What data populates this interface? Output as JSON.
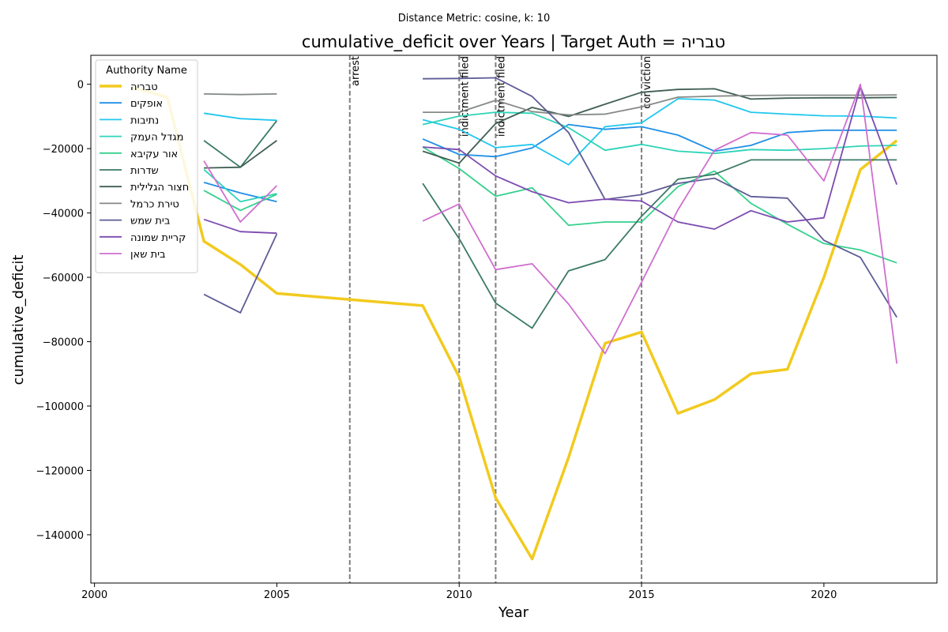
{
  "chart_data": {
    "type": "line",
    "suptitle": "Distance Metric: cosine, k: 10",
    "title": "cumulative_deficit over Years | Target Auth = טבריה",
    "xlabel": "Year",
    "ylabel": "cumulative_deficit",
    "xlim": [
      1999.9,
      2023.1
    ],
    "ylim": [
      -155000,
      9000
    ],
    "xticks": [
      2000,
      2005,
      2010,
      2015,
      2020
    ],
    "yticks": [
      0,
      -20000,
      -40000,
      -60000,
      -80000,
      -100000,
      -120000,
      -140000
    ],
    "ytick_labels": [
      "0",
      "−20000",
      "−40000",
      "−60000",
      "−80000",
      "−100000",
      "−120000",
      "−140000"
    ],
    "grid": false,
    "legend": {
      "title": "Authority Name",
      "placement": "upper-left"
    },
    "events": [
      {
        "x": 2007,
        "label": "arrest"
      },
      {
        "x": 2010,
        "label": "indictment filed"
      },
      {
        "x": 2011,
        "label": "indictment filed"
      },
      {
        "x": 2015,
        "label": "conviction"
      }
    ],
    "series": [
      {
        "name": "טבריה",
        "color": "#f2ca1f",
        "target": true,
        "points": [
          [
            2001,
            -1000
          ],
          [
            2002,
            -4000
          ],
          [
            2003,
            -48800
          ],
          [
            2004,
            -56000
          ],
          [
            2005,
            -65000
          ],
          [
            2009,
            -68800
          ],
          [
            2010,
            -91000
          ],
          [
            2011,
            -128500
          ],
          [
            2012,
            -147500
          ],
          [
            2013,
            -116000
          ],
          [
            2014,
            -80500
          ],
          [
            2015,
            -77000
          ],
          [
            2016,
            -102300
          ],
          [
            2017,
            -98000
          ],
          [
            2018,
            -90000
          ],
          [
            2019,
            -88600
          ],
          [
            2020,
            -60000
          ],
          [
            2021,
            -26500
          ],
          [
            2022,
            -17500
          ]
        ]
      },
      {
        "name": "אופקים",
        "color": "#1f8fe6",
        "points": [
          [
            2003,
            -30500
          ],
          [
            2004,
            -33800
          ],
          [
            2005,
            -36500
          ],
          [
            null,
            null
          ],
          [
            2009,
            -17000
          ],
          [
            2010,
            -21800
          ],
          [
            2011,
            -22500
          ],
          [
            2012,
            -19800
          ],
          [
            2013,
            -12500
          ],
          [
            2014,
            -14000
          ],
          [
            2015,
            -13200
          ],
          [
            2016,
            -15800
          ],
          [
            2017,
            -20800
          ],
          [
            2018,
            -19000
          ],
          [
            2019,
            -15000
          ],
          [
            2020,
            -14300
          ],
          [
            2021,
            -14300
          ],
          [
            2022,
            -14300
          ]
        ]
      },
      {
        "name": "נתיבות",
        "color": "#21c7ef",
        "points": [
          [
            2003,
            -9000
          ],
          [
            2004,
            -10700
          ],
          [
            2005,
            -11200
          ],
          [
            null,
            null
          ],
          [
            2009,
            -11000
          ],
          [
            2010,
            -14000
          ],
          [
            2011,
            -19700
          ],
          [
            2012,
            -18700
          ],
          [
            2013,
            -25000
          ],
          [
            2014,
            -13200
          ],
          [
            2015,
            -12000
          ],
          [
            2016,
            -4500
          ],
          [
            2017,
            -4900
          ],
          [
            2018,
            -8700
          ],
          [
            2019,
            -9300
          ],
          [
            2020,
            -9800
          ],
          [
            2021,
            -9900
          ],
          [
            2022,
            -10500
          ]
        ]
      },
      {
        "name": "מגדל העמק",
        "color": "#2ed4b8",
        "points": [
          [
            2003,
            -26500
          ],
          [
            2004,
            -36500
          ],
          [
            2005,
            -34000
          ],
          [
            null,
            null
          ],
          [
            2009,
            -12500
          ],
          [
            2010,
            -9900
          ],
          [
            2011,
            -8700
          ],
          [
            2012,
            -9000
          ],
          [
            2013,
            -13500
          ],
          [
            2014,
            -20500
          ],
          [
            2015,
            -18700
          ],
          [
            2016,
            -20800
          ],
          [
            2017,
            -21500
          ],
          [
            2018,
            -20300
          ],
          [
            2019,
            -20500
          ],
          [
            2020,
            -20000
          ],
          [
            2021,
            -19200
          ],
          [
            2022,
            -19000
          ]
        ]
      },
      {
        "name": "אור עקיבא",
        "color": "#36d18e",
        "points": [
          [
            2003,
            -33000
          ],
          [
            2004,
            -39200
          ],
          [
            2005,
            -34200
          ],
          [
            null,
            null
          ],
          [
            2009,
            -19500
          ],
          [
            2010,
            -26200
          ],
          [
            2011,
            -34800
          ],
          [
            2012,
            -32200
          ],
          [
            2013,
            -43800
          ],
          [
            2014,
            -42800
          ],
          [
            2015,
            -42800
          ],
          [
            2016,
            -31800
          ],
          [
            2017,
            -27000
          ],
          [
            2018,
            -37000
          ],
          [
            2019,
            -43500
          ],
          [
            2020,
            -49500
          ],
          [
            2021,
            -51500
          ],
          [
            2022,
            -55500
          ]
        ]
      },
      {
        "name": "שדרות",
        "color": "#3b7a67",
        "points": [
          [
            2003,
            -17500
          ],
          [
            2004,
            -25800
          ],
          [
            2005,
            -11300
          ],
          [
            null,
            null
          ],
          [
            2009,
            -30800
          ],
          [
            2010,
            -48000
          ],
          [
            2011,
            -68000
          ],
          [
            2012,
            -75800
          ],
          [
            2013,
            -58000
          ],
          [
            2014,
            -54500
          ],
          [
            2015,
            -41000
          ],
          [
            2016,
            -29500
          ],
          [
            2017,
            -28000
          ],
          [
            2018,
            -23500
          ],
          [
            2019,
            -23500
          ],
          [
            2020,
            -23500
          ],
          [
            2021,
            -23500
          ],
          [
            2022,
            -23500
          ]
        ]
      },
      {
        "name": "חצור הגלילית",
        "color": "#405f52",
        "points": [
          [
            2003,
            -26000
          ],
          [
            2004,
            -25800
          ],
          [
            2005,
            -17500
          ],
          [
            null,
            null
          ],
          [
            2009,
            -20800
          ],
          [
            2010,
            -24500
          ],
          [
            2011,
            -12200
          ],
          [
            2012,
            -7200
          ],
          [
            2013,
            -10000
          ],
          [
            2014,
            -6200
          ],
          [
            2015,
            -2500
          ],
          [
            2016,
            -1600
          ],
          [
            2017,
            -1400
          ],
          [
            2018,
            -4600
          ],
          [
            2019,
            -4300
          ],
          [
            2020,
            -4200
          ],
          [
            2021,
            -4200
          ],
          [
            2022,
            -4100
          ]
        ]
      },
      {
        "name": "טירת כרמל",
        "color": "#858a86",
        "points": [
          [
            2003,
            -3000
          ],
          [
            2004,
            -3200
          ],
          [
            2005,
            -3000
          ],
          [
            null,
            null
          ],
          [
            2009,
            -8700
          ],
          [
            2010,
            -8700
          ],
          [
            2011,
            -5000
          ],
          [
            2012,
            -8500
          ],
          [
            2013,
            -9500
          ],
          [
            2014,
            -9300
          ],
          [
            2015,
            -7000
          ],
          [
            2016,
            -4000
          ],
          [
            2017,
            -3700
          ],
          [
            2018,
            -3500
          ],
          [
            2019,
            -3400
          ],
          [
            2020,
            -3400
          ],
          [
            2021,
            -3400
          ],
          [
            2022,
            -3300
          ]
        ]
      },
      {
        "name": "בית שמש",
        "color": "#5e5c96",
        "points": [
          [
            2003,
            -65300
          ],
          [
            2004,
            -71000
          ],
          [
            2005,
            -46500
          ],
          [
            null,
            null
          ],
          [
            2009,
            1700
          ],
          [
            2010,
            1800
          ],
          [
            2011,
            2000
          ],
          [
            2012,
            -3800
          ],
          [
            2013,
            -15000
          ],
          [
            2014,
            -35800
          ],
          [
            2015,
            -34300
          ],
          [
            2016,
            -30800
          ],
          [
            2017,
            -29200
          ],
          [
            2018,
            -34900
          ],
          [
            2019,
            -35400
          ],
          [
            2020,
            -48500
          ],
          [
            2021,
            -53800
          ],
          [
            2022,
            -72400
          ]
        ]
      },
      {
        "name": "קריית שמונה",
        "color": "#7b4bb0",
        "points": [
          [
            2003,
            -42000
          ],
          [
            2004,
            -45800
          ],
          [
            2005,
            -46300
          ],
          [
            null,
            null
          ],
          [
            2009,
            -19500
          ],
          [
            2010,
            -20300
          ],
          [
            2011,
            -28500
          ],
          [
            2012,
            -33400
          ],
          [
            2013,
            -36800
          ],
          [
            2014,
            -35700
          ],
          [
            2015,
            -36300
          ],
          [
            2016,
            -42800
          ],
          [
            2017,
            -45000
          ],
          [
            2018,
            -39300
          ],
          [
            2019,
            -42800
          ],
          [
            2020,
            -41500
          ],
          [
            2021,
            -700
          ],
          [
            2022,
            -31200
          ]
        ]
      },
      {
        "name": "בית שאן",
        "color": "#cf6fcf",
        "points": [
          [
            2003,
            -23800
          ],
          [
            2004,
            -42800
          ],
          [
            2005,
            -31500
          ],
          [
            null,
            null
          ],
          [
            2009,
            -42500
          ],
          [
            2010,
            -37200
          ],
          [
            2011,
            -57600
          ],
          [
            2012,
            -55800
          ],
          [
            2013,
            -68300
          ],
          [
            2014,
            -83700
          ],
          [
            2015,
            -61500
          ],
          [
            2016,
            -39000
          ],
          [
            2017,
            -20500
          ],
          [
            2018,
            -15000
          ],
          [
            2019,
            -15800
          ],
          [
            2020,
            -30000
          ],
          [
            2021,
            0
          ],
          [
            2022,
            -86800
          ]
        ]
      }
    ]
  }
}
